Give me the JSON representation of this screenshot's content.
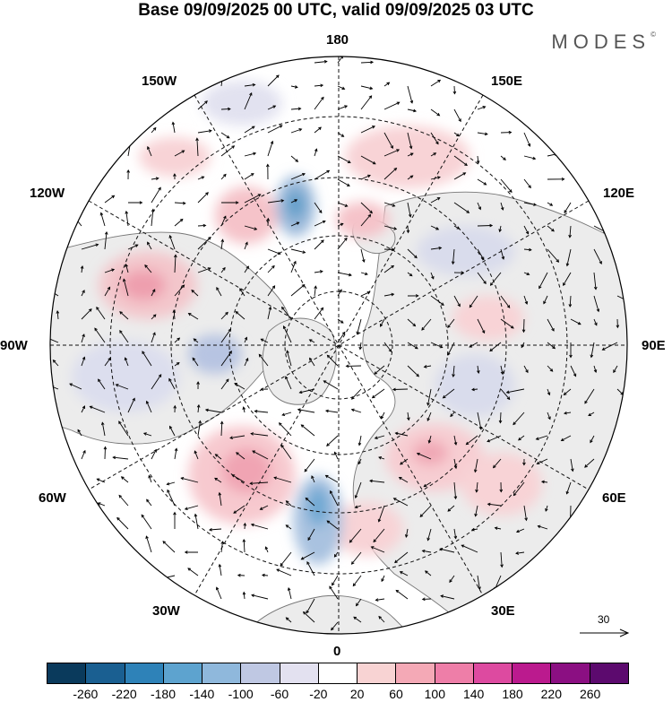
{
  "title": "Base 09/09/2025 00 UTC, valid 09/09/2025 03 UTC",
  "brand": {
    "name": "MODES",
    "mark": "©"
  },
  "map": {
    "projection": "north polar stereographic",
    "longitude_labels": {
      "top": "180",
      "top_left": "150W",
      "top_right": "150E",
      "upper_left": "120W",
      "upper_right": "120E",
      "left": "90W",
      "right": "90E",
      "lower_left": "60W",
      "lower_right": "60E",
      "bottom_left": "30W",
      "bottom_right": "30E",
      "bottom": "0"
    },
    "reference_vector": {
      "value": "30",
      "icon": "arrow-right-icon"
    }
  },
  "legend": {
    "ticks": [
      "-260",
      "-220",
      "-180",
      "-140",
      "-100",
      "-60",
      "-20",
      "20",
      "60",
      "100",
      "140",
      "180",
      "220",
      "260"
    ],
    "colors": [
      "#0a3a5c",
      "#1a5f91",
      "#2e82b8",
      "#5da3cf",
      "#8fb8dc",
      "#bfc8e3",
      "#e3e1f0",
      "#ffffff",
      "#f8d3d3",
      "#f4a9b6",
      "#ee7ea8",
      "#dd4aa0",
      "#bb1a8e",
      "#8b0f82",
      "#5c0a6e"
    ]
  }
}
